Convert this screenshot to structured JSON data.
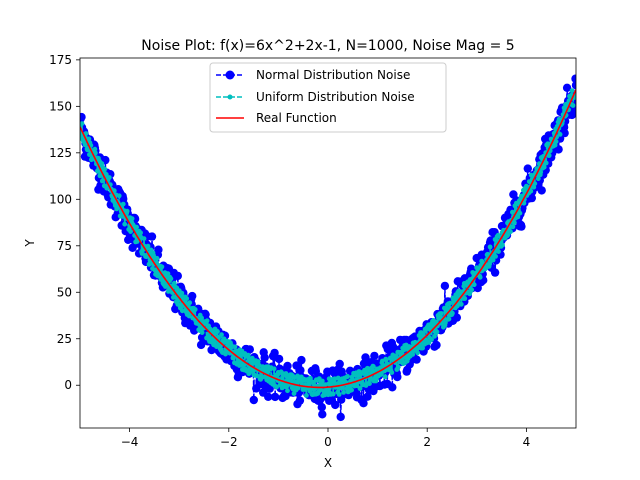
{
  "chart_data": {
    "type": "scatter",
    "title": "Noise Plot: f(x)=6x^2+2x-1, N=1000, Noise Mag = 5",
    "xlabel": "X",
    "ylabel": "Y",
    "xlim": [
      -5,
      5
    ],
    "ylim": [
      -23,
      176
    ],
    "xticks": [
      -4,
      -2,
      0,
      2,
      4
    ],
    "yticks": [
      0,
      25,
      50,
      75,
      100,
      125,
      150,
      175
    ],
    "xtick_labels": [
      "−4",
      "−2",
      "0",
      "2",
      "4"
    ],
    "ytick_labels": [
      "0",
      "25",
      "50",
      "75",
      "100",
      "125",
      "150",
      "175"
    ],
    "grid": false,
    "legend_position": "top-center",
    "function": {
      "a": 6,
      "b": 2,
      "c": -1
    },
    "n_points": 1000,
    "noise_magnitude": 5,
    "series": [
      {
        "name": "Normal Distribution Noise",
        "style": "dashed line with circle markers",
        "color": "#0000ff",
        "noise": "normal"
      },
      {
        "name": "Uniform Distribution Noise",
        "style": "dashed line with small circle markers",
        "color": "#00bfbf",
        "noise": "uniform"
      },
      {
        "name": "Real Function",
        "style": "solid line",
        "color": "#ff0000",
        "noise": "none"
      }
    ]
  }
}
